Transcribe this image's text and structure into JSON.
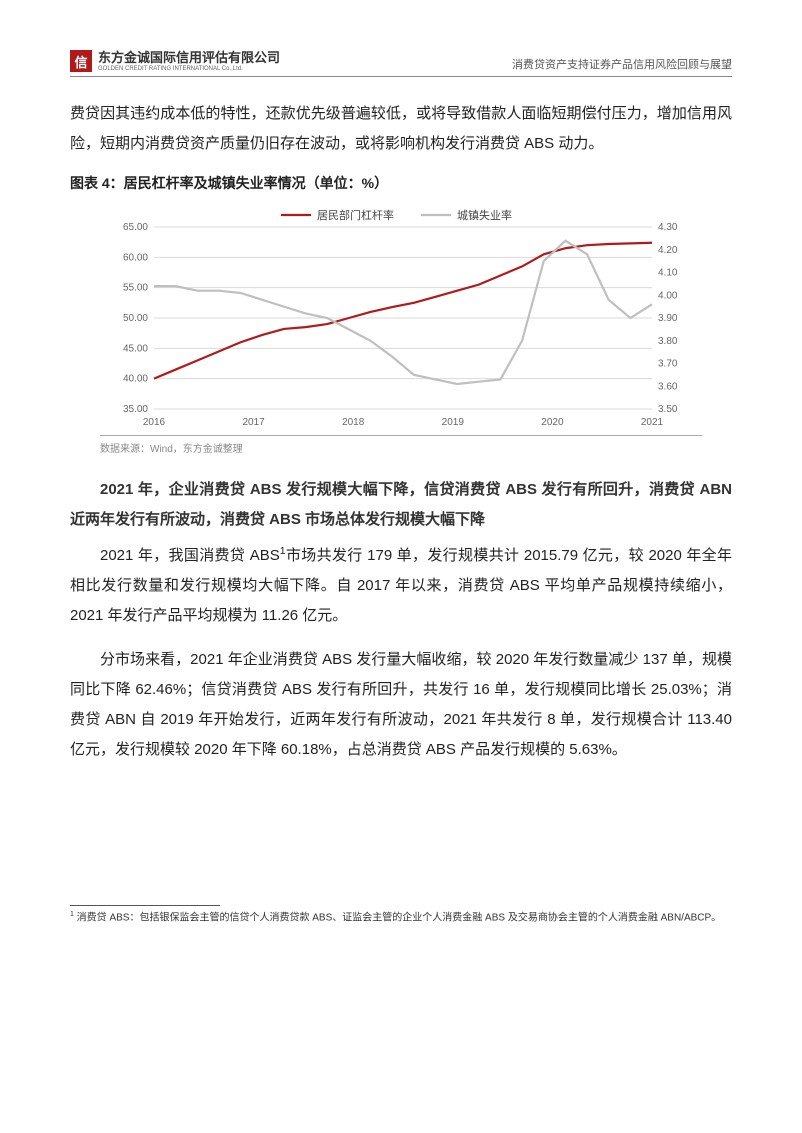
{
  "header": {
    "logo_char": "信",
    "logo_cn": "东方金诚国际信用评估有限公司",
    "logo_en": "GOLDEN CREDIT RATING INTERNATIONAL Co.,Ltd.",
    "doc_title": "消费贷资产支持证券产品信用风险回顾与展望"
  },
  "para_top": "费贷因其违约成本低的特性，还款优先级普遍较低，或将导致借款人面临短期偿付压力，增加信用风险，短期内消费贷资产质量仍旧存在波动，或将影响机构发行消费贷 ABS 动力。",
  "chart": {
    "title": "图表 4：居民杠杆率及城镇失业率情况（单位：%）",
    "legend": {
      "s1": "居民部门杠杆率",
      "s2": "城镇失业率"
    },
    "x_labels": [
      "2016",
      "2017",
      "2018",
      "2019",
      "2020",
      "2021"
    ],
    "y_left": {
      "min": 35.0,
      "max": 65.0,
      "ticks": [
        "35.00",
        "40.00",
        "45.00",
        "50.00",
        "55.00",
        "60.00",
        "65.00"
      ]
    },
    "y_right": {
      "min": 3.5,
      "max": 4.3,
      "ticks": [
        "3.50",
        "3.60",
        "3.70",
        "3.80",
        "3.90",
        "4.00",
        "4.10",
        "4.20",
        "4.30"
      ]
    },
    "series1_values": [
      40.0,
      41.5,
      43.0,
      44.5,
      46.0,
      47.2,
      48.2,
      48.5,
      49.0,
      50.0,
      51.0,
      51.8,
      52.5,
      53.5,
      54.5,
      55.5,
      57.0,
      58.5,
      60.5,
      61.5,
      62.0,
      62.2,
      62.3,
      62.4
    ],
    "series2_values": [
      4.04,
      4.04,
      4.02,
      4.02,
      4.01,
      3.98,
      3.95,
      3.92,
      3.9,
      3.85,
      3.8,
      3.73,
      3.65,
      3.63,
      3.61,
      3.62,
      3.63,
      3.8,
      4.15,
      4.24,
      4.18,
      3.98,
      3.9,
      3.96
    ],
    "colors": {
      "s1": "#b01a1a",
      "s2": "#bfbfbf",
      "grid": "#d9d9d9",
      "axis_text": "#666666"
    },
    "line_width": 2.2,
    "font_size_axis": 10,
    "font_size_legend": 11,
    "source": "数据来源：Wind，东方金诚整理"
  },
  "bold_para": "2021 年，企业消费贷 ABS 发行规模大幅下降，信贷消费贷 ABS 发行有所回升，消费贷 ABN 近两年发行有所波动，消费贷 ABS 市场总体发行规模大幅下降",
  "para2_a": "2021 年，我国消费贷 ABS",
  "para2_b": "市场共发行 179 单，发行规模共计 2015.79 亿元，较 2020 年全年相比发行数量和发行规模均大幅下降。自 2017 年以来，消费贷 ABS 平均单产品规模持续缩小，2021 年发行产品平均规模为 11.26 亿元。",
  "para3": "分市场来看，2021 年企业消费贷 ABS 发行量大幅收缩，较 2020 年发行数量减少 137 单，规模同比下降 62.46%；信贷消费贷 ABS 发行有所回升，共发行 16 单，发行规模同比增长 25.03%；消费贷 ABN 自 2019 年开始发行，近两年发行有所波动，2021 年共发行 8 单，发行规模合计 113.40 亿元，发行规模较 2020 年下降 60.18%，占总消费贷 ABS 产品发行规模的 5.63%。",
  "footnote_marker": "1",
  "footnote": " 消费贷 ABS：包括银保监会主管的信贷个人消费贷款 ABS、证监会主管的企业个人消费金融 ABS 及交易商协会主管的个人消费金融 ABN/ABCP。"
}
